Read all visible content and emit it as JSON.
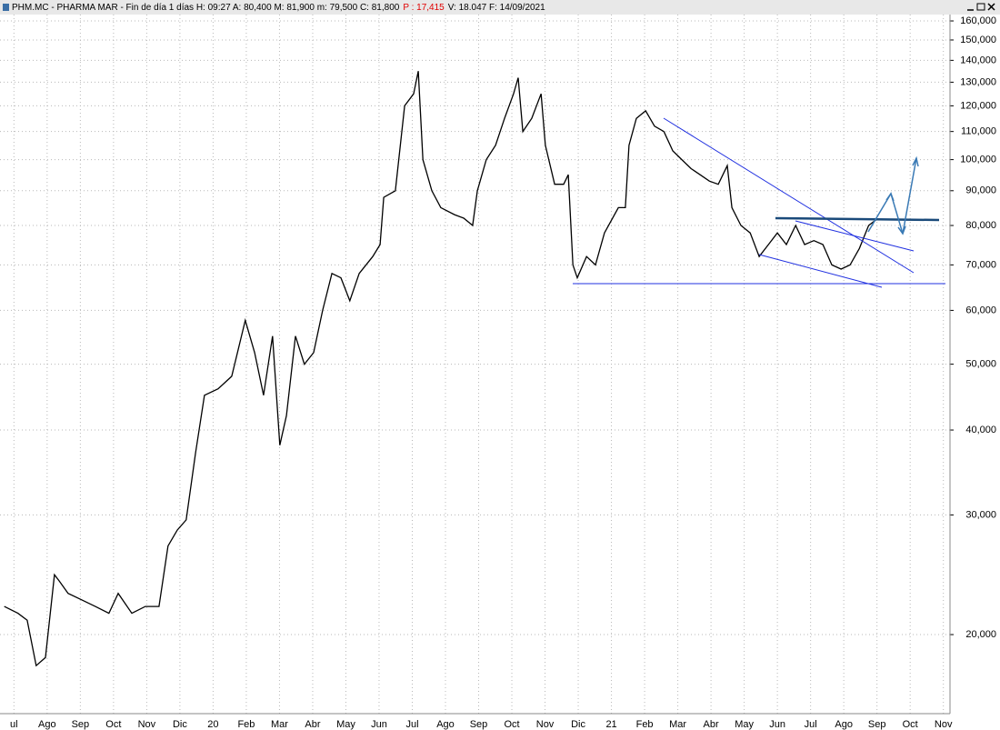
{
  "chart_data": {
    "type": "line",
    "title": "PHM.MC - PHARMA MAR - Fin de día 1 días  H: 09:27  A: 80,400  M: 81,900  m: 79,500  C: 81,800",
    "change": "P : 17,415",
    "footer": "V: 18.047  F: 14/09/2021",
    "log_scale": true,
    "grid": true,
    "color": "#000000",
    "series": [
      {
        "name": "PHM.MC",
        "x": [
          -0.29,
          0.12,
          0.4,
          0.67,
          0.95,
          1.22,
          1.36,
          1.63,
          2.04,
          2.45,
          2.86,
          3.14,
          3.55,
          3.96,
          4.37,
          4.64,
          4.92,
          5.19,
          5.47,
          5.74,
          6.15,
          6.56,
          6.97,
          7.25,
          7.52,
          7.79,
          8.01,
          8.21,
          8.48,
          8.75,
          9.03,
          9.3,
          9.58,
          9.85,
          10.12,
          10.4,
          10.81,
          11.03,
          11.14,
          11.49,
          11.77,
          12.04,
          12.18,
          12.32,
          12.59,
          12.86,
          13.27,
          13.55,
          13.82,
          13.96,
          14.23,
          14.51,
          14.78,
          15.05,
          15.19,
          15.33,
          15.6,
          15.88,
          16.01,
          16.29,
          16.56,
          16.7,
          16.84,
          16.97,
          17.25,
          17.52,
          17.79,
          18.21,
          18.42,
          18.53,
          18.75,
          19.03,
          19.3,
          19.58,
          19.85,
          20.12,
          20.4,
          20.67,
          20.95,
          21.22,
          21.49,
          21.63,
          21.9,
          22.18,
          22.45,
          22.73,
          23.0,
          23.27,
          23.55,
          23.82,
          24.1,
          24.37,
          24.64,
          24.92,
          25.19,
          25.47,
          25.75,
          26.01
        ],
        "values": [
          22000,
          21500,
          21000,
          18000,
          18500,
          24500,
          24000,
          23000,
          22500,
          22000,
          21500,
          23000,
          21500,
          22000,
          22000,
          27000,
          28500,
          29500,
          37000,
          45000,
          46000,
          48000,
          58000,
          52000,
          45000,
          55000,
          38000,
          42000,
          55000,
          50000,
          52000,
          60000,
          68000,
          67000,
          62000,
          68000,
          72000,
          75000,
          88000,
          90000,
          120000,
          125000,
          135000,
          100000,
          90000,
          85000,
          83000,
          82000,
          80000,
          90000,
          100000,
          105000,
          115000,
          125000,
          132000,
          110000,
          115000,
          125000,
          105000,
          92000,
          92000,
          95000,
          70000,
          67000,
          72000,
          70000,
          78000,
          85000,
          85000,
          105000,
          115000,
          118000,
          112000,
          110000,
          103000,
          100000,
          97000,
          95000,
          93000,
          92000,
          98000,
          85000,
          80000,
          78000,
          72000,
          75000,
          78000,
          75000,
          80000,
          75000,
          76000,
          75000,
          70000,
          69000,
          70000,
          74000,
          80000,
          81800
        ]
      }
    ],
    "xlim": [
      -0.42,
      28.2
    ],
    "xticks": [
      {
        "value": 0,
        "label": "ul"
      },
      {
        "value": 1,
        "label": "Ago"
      },
      {
        "value": 2,
        "label": "Sep"
      },
      {
        "value": 3,
        "label": "Oct"
      },
      {
        "value": 4,
        "label": "Nov"
      },
      {
        "value": 5,
        "label": "Dic"
      },
      {
        "value": 6,
        "label": "20"
      },
      {
        "value": 7,
        "label": "Feb"
      },
      {
        "value": 8,
        "label": "Mar"
      },
      {
        "value": 9,
        "label": "Abr"
      },
      {
        "value": 10,
        "label": "May"
      },
      {
        "value": 11,
        "label": "Jun"
      },
      {
        "value": 12,
        "label": "Jul"
      },
      {
        "value": 13,
        "label": "Ago"
      },
      {
        "value": 14,
        "label": "Sep"
      },
      {
        "value": 15,
        "label": "Oct"
      },
      {
        "value": 16,
        "label": "Nov"
      },
      {
        "value": 17,
        "label": "Dic"
      },
      {
        "value": 18,
        "label": "21"
      },
      {
        "value": 19,
        "label": "Feb"
      },
      {
        "value": 20,
        "label": "Mar"
      },
      {
        "value": 21,
        "label": "Abr"
      },
      {
        "value": 22,
        "label": "May"
      },
      {
        "value": 23,
        "label": "Jun"
      },
      {
        "value": 24,
        "label": "Jul"
      },
      {
        "value": 25,
        "label": "Ago"
      },
      {
        "value": 26,
        "label": "Sep"
      },
      {
        "value": 27,
        "label": "Oct"
      },
      {
        "value": 28,
        "label": "Nov"
      }
    ],
    "ylim": [
      15300,
      163500
    ],
    "yticks": [
      {
        "value": 20000,
        "label": "20,000"
      },
      {
        "value": 30000,
        "label": "30,000"
      },
      {
        "value": 40000,
        "label": "40,000"
      },
      {
        "value": 50000,
        "label": "50,000"
      },
      {
        "value": 60000,
        "label": "60,000"
      },
      {
        "value": 70000,
        "label": "70,000"
      },
      {
        "value": 80000,
        "label": "80,000"
      },
      {
        "value": 90000,
        "label": "90,000"
      },
      {
        "value": 100000,
        "label": "100,000"
      },
      {
        "value": 110000,
        "label": "110,000"
      },
      {
        "value": 120000,
        "label": "120,000"
      },
      {
        "value": 130000,
        "label": "130,000"
      },
      {
        "value": 140000,
        "label": "140,000"
      },
      {
        "value": 150000,
        "label": "150,000"
      },
      {
        "value": 160000,
        "label": "160,000"
      }
    ]
  }
}
